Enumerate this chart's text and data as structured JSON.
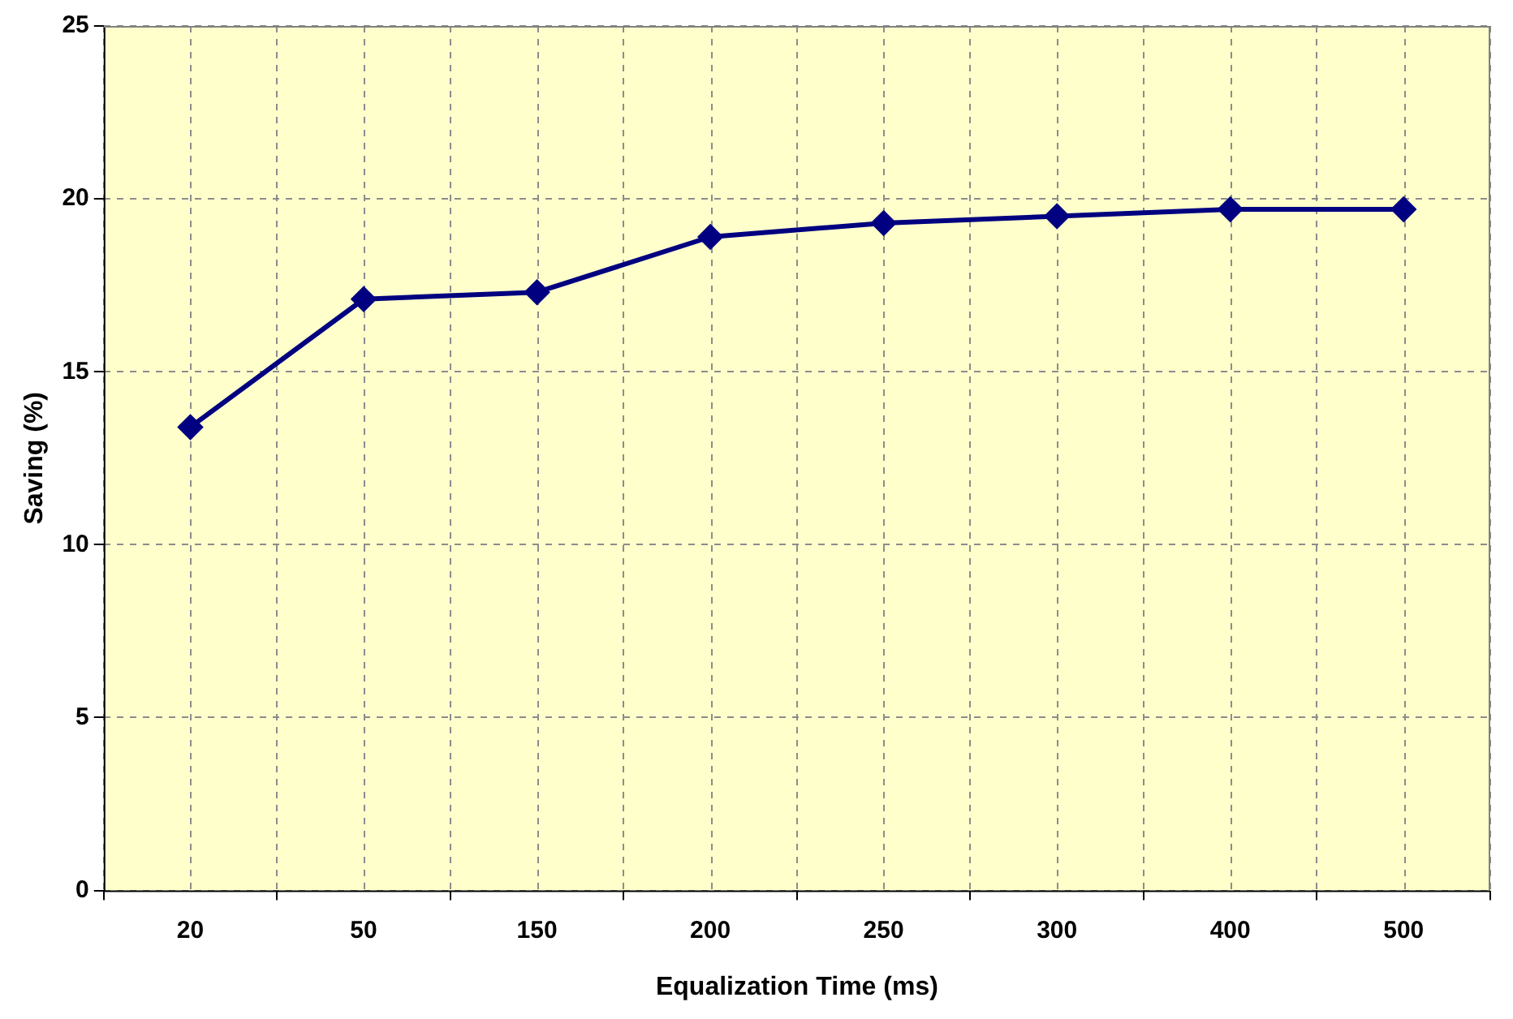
{
  "chart_data": {
    "type": "line",
    "xlabel": "Equalization Time (ms)",
    "ylabel": "Saving (%)",
    "categories": [
      "20",
      "50",
      "150",
      "200",
      "250",
      "300",
      "400",
      "500"
    ],
    "series": [
      {
        "color": "#000080",
        "values": [
          13.4,
          17.1,
          17.3,
          18.9,
          19.3,
          19.5,
          19.7,
          19.7
        ]
      }
    ],
    "ylim": [
      0,
      25
    ],
    "yticks": [
      0,
      5,
      10,
      15,
      20,
      25
    ],
    "grid": true,
    "legend": false,
    "marker": "diamond",
    "line_style": "solid"
  }
}
